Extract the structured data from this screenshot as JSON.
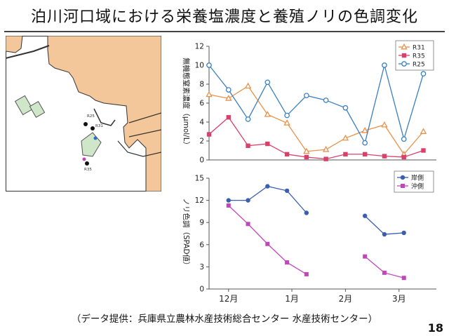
{
  "slide": {
    "title": "泊川河口域における栄養塩濃度と養殖ノリの色調変化",
    "source": "（データ提供：兵庫県立農林水産技術総合センター 水産技術センター）",
    "page_number": "18"
  },
  "map": {
    "station_labels": [
      "R25",
      "R31",
      "R35"
    ],
    "colors": {
      "land": "#f4c79a",
      "sea": "#ffffff",
      "farm": "#cfe6c9",
      "outline": "#333333"
    }
  },
  "chart_data": [
    {
      "type": "line",
      "ylabel": "無機態窒素濃度（μmol/L）",
      "ylim": [
        0,
        12
      ],
      "yticks": [
        0,
        2,
        4,
        6,
        8,
        10,
        12
      ],
      "xlim": [
        0,
        14
      ],
      "legend_position": "top-right",
      "series": [
        {
          "name": "R31",
          "color": "#e8914a",
          "marker": "triangle",
          "x": [
            0,
            1.2,
            2.4,
            3.6,
            4.8,
            6,
            7.2,
            8.4,
            9.6,
            10.8,
            12,
            13.2
          ],
          "y": [
            6.9,
            6.5,
            7.8,
            4.8,
            3.9,
            0.9,
            1.1,
            2.3,
            3.1,
            3.7,
            0.6,
            3.0
          ]
        },
        {
          "name": "R35",
          "color": "#d9406a",
          "marker": "square",
          "x": [
            0,
            1.2,
            2.4,
            3.6,
            4.8,
            6,
            7.2,
            8.4,
            9.6,
            10.8,
            12,
            13.2
          ],
          "y": [
            2.7,
            4.5,
            1.5,
            1.7,
            0.6,
            0.3,
            0.1,
            0.6,
            0.6,
            0.4,
            0.3,
            1.0
          ]
        },
        {
          "name": "R25",
          "color": "#3a7fc1",
          "marker": "circle",
          "x": [
            0,
            1.2,
            2.4,
            3.6,
            4.8,
            6,
            7.2,
            8.4,
            9.6,
            10.8,
            12,
            13.2
          ],
          "y": [
            10.0,
            7.4,
            4.3,
            8.2,
            4.7,
            6.8,
            6.3,
            5.5,
            1.8,
            10.0,
            2.2,
            9.1
          ]
        }
      ]
    },
    {
      "type": "line",
      "ylabel": "ノリ色調（SPAD値）",
      "ylim": [
        0,
        15
      ],
      "yticks": [
        0,
        3,
        6,
        9,
        12,
        15
      ],
      "xlim": [
        0,
        14
      ],
      "categories": [
        "12月",
        "1月",
        "2月",
        "3月"
      ],
      "category_x": [
        1.2,
        5.1,
        8.4,
        11.7
      ],
      "legend_position": "top-right",
      "series": [
        {
          "name": "岸側",
          "color": "#3a5fb0",
          "marker": "circle",
          "segments": [
            {
              "x": [
                1.2,
                2.4,
                3.6,
                4.8,
                6.0
              ],
              "y": [
                12.0,
                12.0,
                13.9,
                13.3,
                10.3
              ]
            },
            {
              "x": [
                9.6,
                10.8,
                12.0
              ],
              "y": [
                9.9,
                7.4,
                7.6
              ]
            }
          ]
        },
        {
          "name": "沖側",
          "color": "#c047b8",
          "marker": "square",
          "segments": [
            {
              "x": [
                1.2,
                2.4,
                3.6,
                4.8,
                6.0
              ],
              "y": [
                11.3,
                8.8,
                6.1,
                3.6,
                2.0
              ]
            },
            {
              "x": [
                9.6,
                10.8,
                12.0
              ],
              "y": [
                4.4,
                2.2,
                1.5
              ]
            }
          ]
        }
      ]
    }
  ]
}
